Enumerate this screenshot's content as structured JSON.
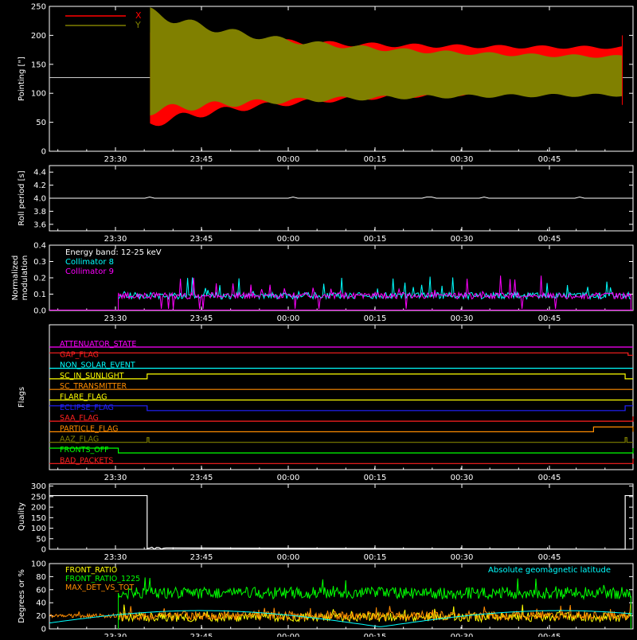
{
  "chart_data": [
    {
      "id": "pointing",
      "type": "line",
      "ylabel": "Pointing [\"]",
      "ylim": [
        0,
        250
      ],
      "yticks": [
        "0",
        "50",
        "100",
        "150",
        "200",
        "250"
      ],
      "xticks": [
        "23:30",
        "23:45",
        "00:00",
        "00:15",
        "00:30",
        "00:45"
      ],
      "legend": [
        {
          "name": "X",
          "color": "#ff0000"
        },
        {
          "name": "Y",
          "color": "#808000"
        }
      ],
      "baseline": 127,
      "series": [
        {
          "name": "X",
          "color": "#ff0000",
          "envelope_start": [
            48,
            205
          ],
          "envelope_end": [
            105,
            178
          ]
        },
        {
          "name": "Y",
          "color": "#808000",
          "envelope_start": [
            70,
            240
          ],
          "envelope_end": [
            98,
            160
          ]
        }
      ]
    },
    {
      "id": "roll",
      "type": "line",
      "ylabel": "Roll period [s]",
      "ylim": [
        3.5,
        4.5
      ],
      "yticks": [
        "3.6",
        "3.8",
        "4.0",
        "4.2",
        "4.4"
      ],
      "xticks": [
        "23:30",
        "23:45",
        "00:00",
        "00:15",
        "00:30",
        "00:45"
      ],
      "value": 4.0,
      "color": "#ffffff"
    },
    {
      "id": "modulation",
      "type": "line",
      "ylabel": [
        "Normalized",
        "modulation"
      ],
      "ylim": [
        0,
        0.4
      ],
      "yticks": [
        "0.0",
        "0.1",
        "0.2",
        "0.3",
        "0.4"
      ],
      "xticks": [
        "23:30",
        "23:45",
        "00:00",
        "00:15",
        "00:30",
        "00:45"
      ],
      "annotations": [
        {
          "text": "Energy band: 12-25 keV",
          "color": "#ffffff"
        },
        {
          "text": "Collimator 8",
          "color": "#00ffff"
        },
        {
          "text": "Collimator 9",
          "color": "#ff00ff"
        }
      ],
      "series": [
        {
          "name": "Collimator 8",
          "color": "#00ffff",
          "base": 0.09
        },
        {
          "name": "Collimator 9",
          "color": "#ff00ff",
          "base": 0.09
        }
      ]
    },
    {
      "id": "flags",
      "type": "line",
      "ylabel": "Flags",
      "xticks": [
        "23:30",
        "23:45",
        "00:00",
        "00:15",
        "00:30",
        "00:45"
      ],
      "flags": [
        {
          "name": "ATTENUATOR_STATE",
          "color": "#ff00ff"
        },
        {
          "name": "GAP_FLAG",
          "color": "#ff2020"
        },
        {
          "name": "NON_SOLAR_EVENT",
          "color": "#00ffff"
        },
        {
          "name": "SC_IN_SUNLIGHT",
          "color": "#ffff00"
        },
        {
          "name": "SC_TRANSMITTER",
          "color": "#ff8c00"
        },
        {
          "name": "FLARE_FLAG",
          "color": "#ffff00"
        },
        {
          "name": "ECLIPSE_FLAG",
          "color": "#2222ff"
        },
        {
          "name": "SAA_FLAG",
          "color": "#ff2020"
        },
        {
          "name": "PARTICLE_FLAG",
          "color": "#ff8c00"
        },
        {
          "name": "AAZ_FLAG",
          "color": "#808000"
        },
        {
          "name": "FRONTS_OFF",
          "color": "#00ff00"
        },
        {
          "name": "BAD_PACKETS",
          "color": "#ff2020"
        }
      ]
    },
    {
      "id": "quality",
      "type": "line",
      "ylabel": "Quality",
      "ylim": [
        0,
        310
      ],
      "yticks": [
        "0",
        "50",
        "100",
        "150",
        "200",
        "250",
        "300"
      ],
      "xticks": [
        "23:30",
        "23:45",
        "00:00",
        "00:15",
        "00:30",
        "00:45"
      ],
      "high": 255,
      "low": 0,
      "color": "#ffffff"
    },
    {
      "id": "ratios",
      "type": "line",
      "ylabel": "Degrees or %",
      "ylim": [
        0,
        100
      ],
      "yticks": [
        "0",
        "20",
        "40",
        "60",
        "80",
        "100"
      ],
      "xticks": [
        "23:30",
        "23:45",
        "00:00",
        "00:15",
        "00:30",
        "00:45"
      ],
      "legend": [
        {
          "name": "FRONT_RATIO",
          "color": "#ffff00"
        },
        {
          "name": "FRONT_RATIO_1225",
          "color": "#00ff00"
        },
        {
          "name": "MAX_DET_VS_TOT",
          "color": "#ff8c00"
        }
      ],
      "annotation": {
        "text": "Absolute geomagnetic latitude",
        "color": "#00ffff"
      },
      "series": [
        {
          "name": "FRONT_RATIO_1225",
          "color": "#00ff00",
          "mean": 55
        },
        {
          "name": "MAX_DET_VS_TOT",
          "color": "#ff8c00",
          "mean": 20
        },
        {
          "name": "FRONT_RATIO",
          "color": "#ffff00",
          "mean": 18
        },
        {
          "name": "Absolute geomagnetic latitude",
          "color": "#00ffff",
          "min": 3,
          "max": 28
        }
      ]
    }
  ]
}
